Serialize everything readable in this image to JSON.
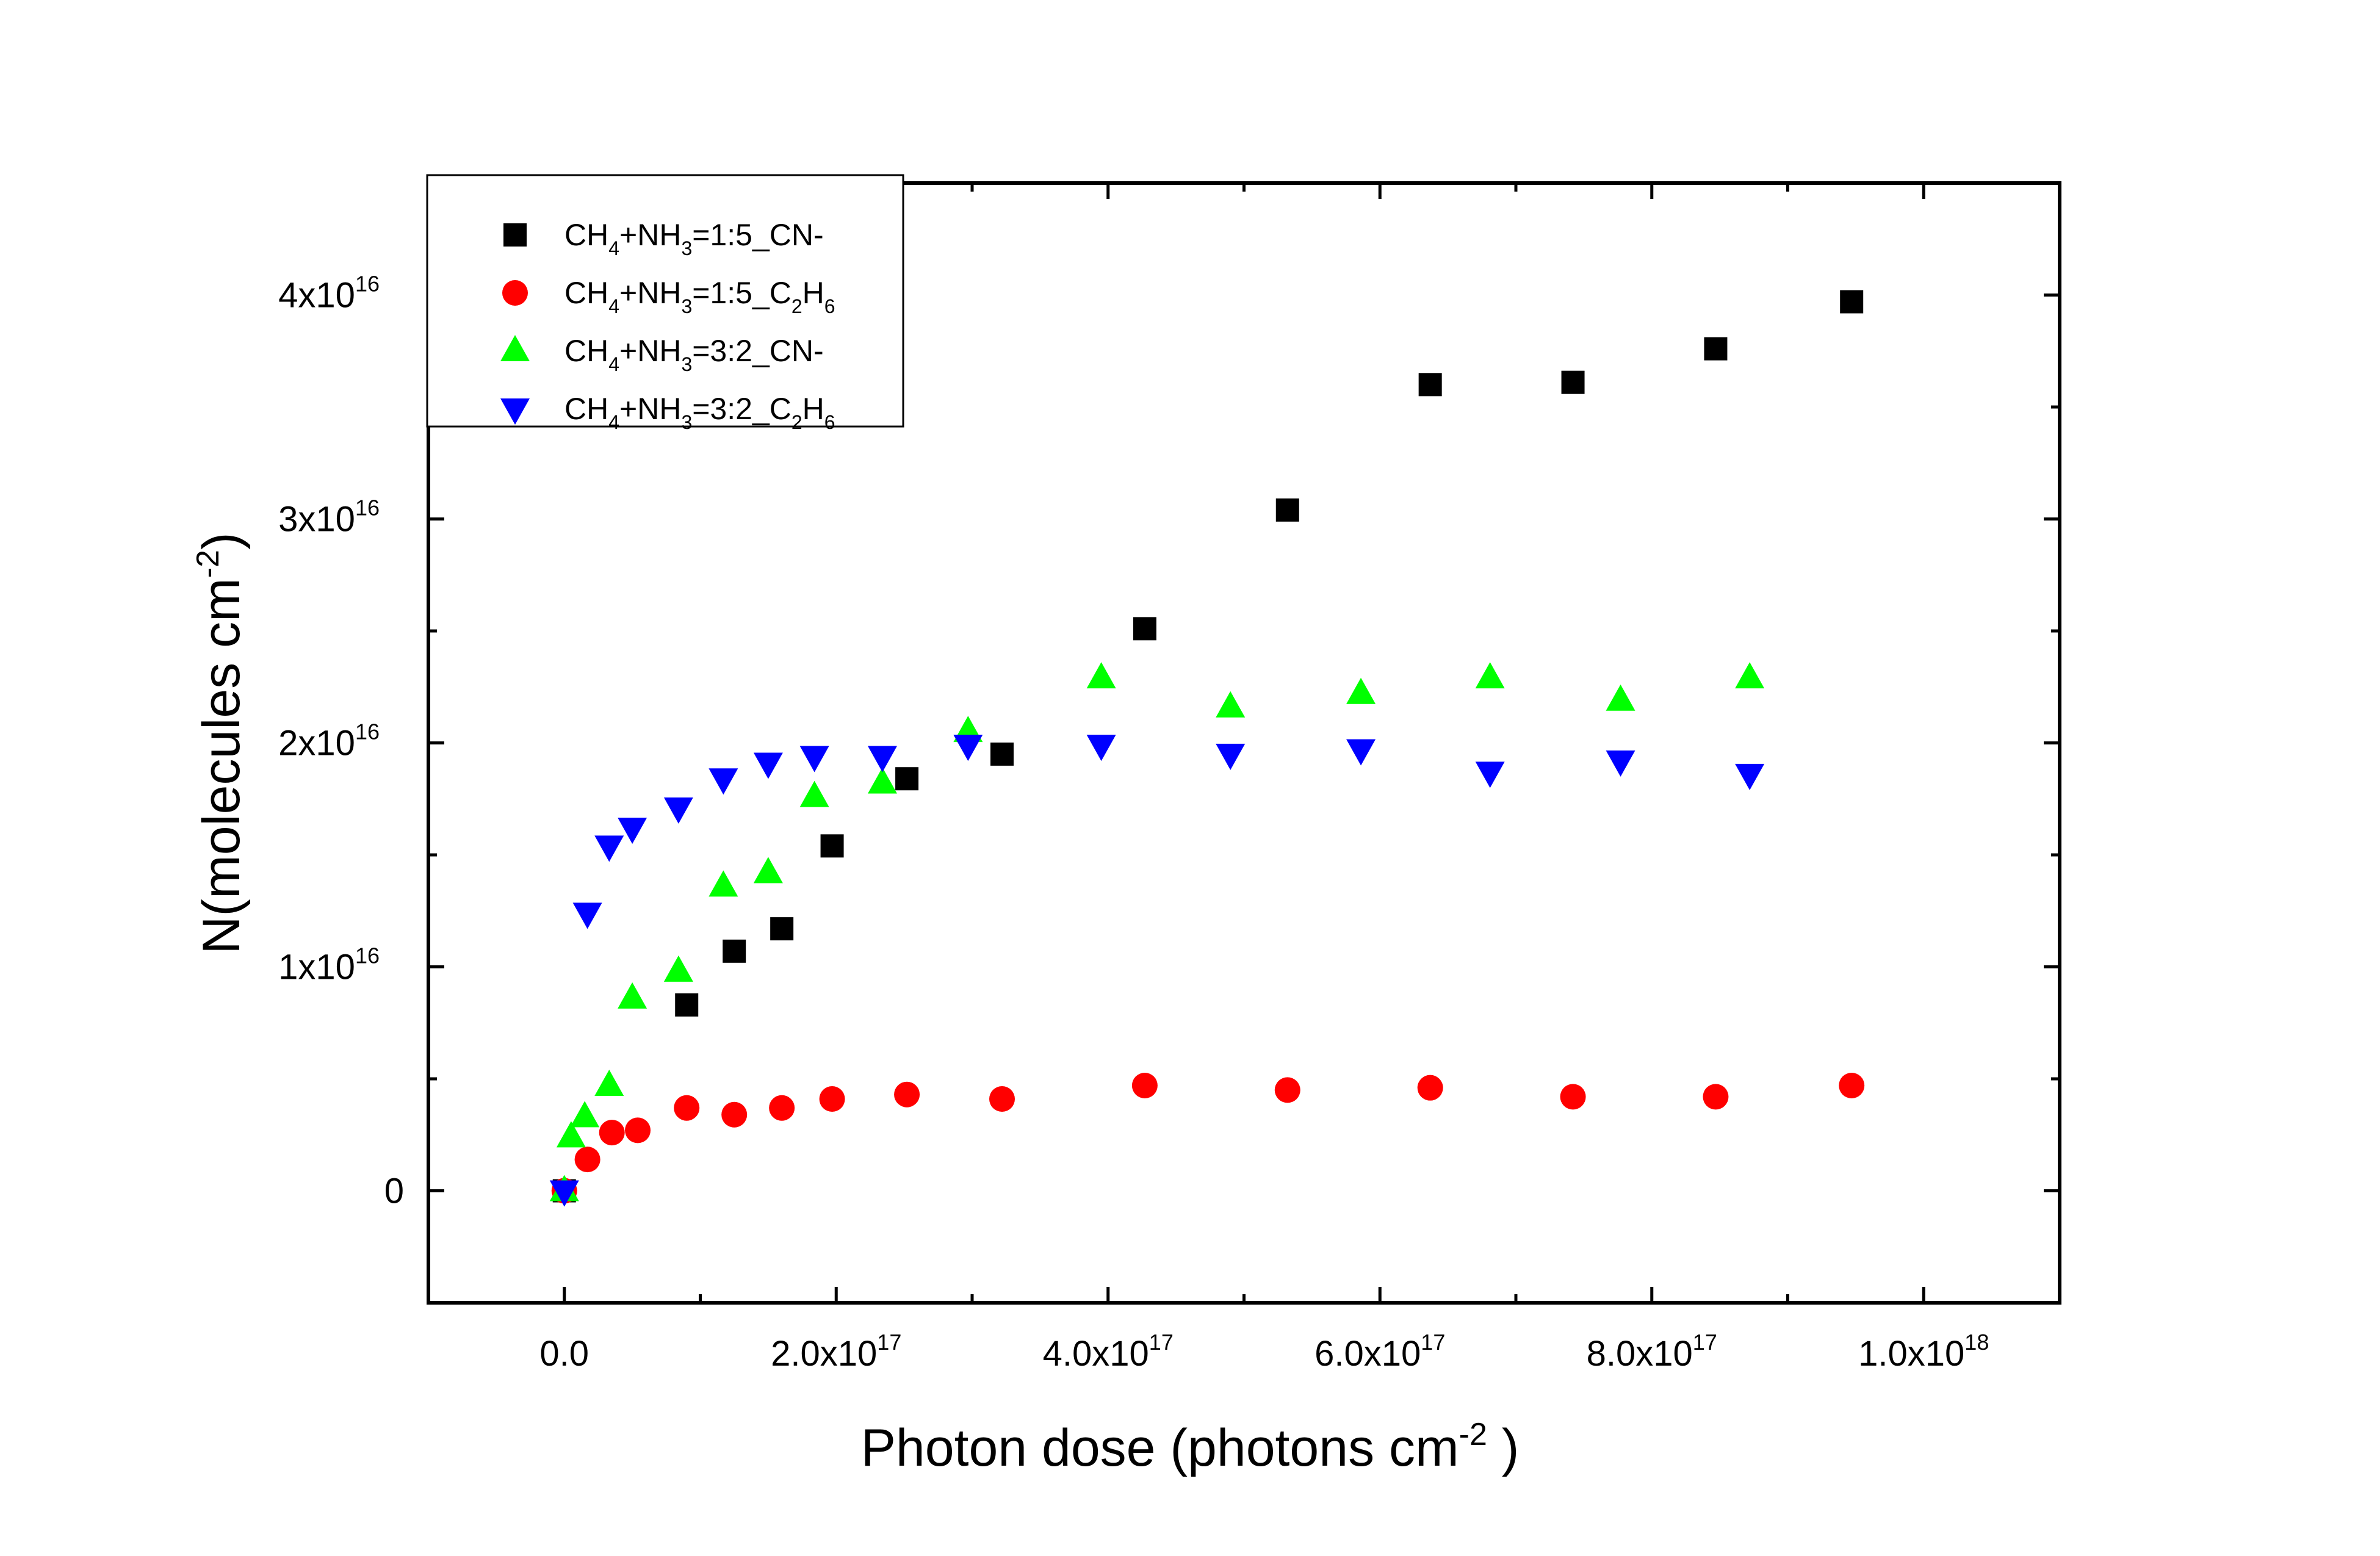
{
  "chart_data": {
    "type": "scatter",
    "xaxis": {
      "label_main": "Photon dose (photons cm",
      "label_sup": "-2",
      "label_end": " )",
      "range": [
        -1e+17,
        1.1e+18
      ],
      "ticks": [
        {
          "value": 0,
          "mantissa": "0.0",
          "exp": ""
        },
        {
          "value": 2e+17,
          "mantissa": "2.0x10",
          "exp": "17"
        },
        {
          "value": 4e+17,
          "mantissa": "4.0x10",
          "exp": "17"
        },
        {
          "value": 6e+17,
          "mantissa": "6.0x10",
          "exp": "17"
        },
        {
          "value": 8e+17,
          "mantissa": "8.0x10",
          "exp": "17"
        },
        {
          "value": 1e+18,
          "mantissa": "1.0x10",
          "exp": "18"
        }
      ],
      "minor_ticks": [
        1e+17,
        3e+17,
        5e+17,
        7e+17,
        9e+17
      ]
    },
    "yaxis": {
      "label_main": "N(molecules cm",
      "label_sup": "-2",
      "label_end": ")",
      "range": [
        -5000000000000000.0,
        4.5e+16
      ],
      "ticks": [
        {
          "value": 0,
          "mantissa": "0",
          "exp": ""
        },
        {
          "value": 1e+16,
          "mantissa": "1x10",
          "exp": "16"
        },
        {
          "value": 2e+16,
          "mantissa": "2x10",
          "exp": "16"
        },
        {
          "value": 3e+16,
          "mantissa": "3x10",
          "exp": "16"
        },
        {
          "value": 4e+16,
          "mantissa": "4x10",
          "exp": "16"
        }
      ],
      "minor_ticks": [
        5000000000000000.0,
        1.5e+16,
        2.5e+16,
        3.5e+16
      ]
    },
    "grid": false,
    "legend_position": "top-left",
    "series": [
      {
        "name": "CH4+NH3=1:5_CN-",
        "legend_parts": [
          [
            "CH",
            ""
          ],
          [
            "4",
            "sub"
          ],
          [
            "+NH",
            ""
          ],
          [
            "3",
            "sub"
          ],
          [
            "=1:5_CN-",
            ""
          ]
        ],
        "marker": "square",
        "color": "#000000",
        "points": [
          [
            0,
            0
          ],
          [
            9e+16,
            8300000000000000.0
          ],
          [
            1.25e+17,
            1.07e+16
          ],
          [
            1.6e+17,
            1.17e+16
          ],
          [
            1.97e+17,
            1.54e+16
          ],
          [
            2.52e+17,
            1.84e+16
          ],
          [
            3.22e+17,
            1.95e+16
          ],
          [
            4.27e+17,
            2.51e+16
          ],
          [
            5.32e+17,
            3.04e+16
          ],
          [
            6.37e+17,
            3.6e+16
          ],
          [
            7.42e+17,
            3.61e+16
          ],
          [
            8.47e+17,
            3.76e+16
          ],
          [
            9.47e+17,
            3.97e+16
          ]
        ]
      },
      {
        "name": "CH4+NH3=1:5_C2H6",
        "legend_parts": [
          [
            "CH",
            ""
          ],
          [
            "4",
            "sub"
          ],
          [
            "+NH",
            ""
          ],
          [
            "3",
            "sub"
          ],
          [
            "=1:5_C",
            ""
          ],
          [
            "2",
            "sub"
          ],
          [
            "H",
            ""
          ],
          [
            "6",
            "sub"
          ]
        ],
        "marker": "circle",
        "color": "#ff0000",
        "points": [
          [
            0,
            0
          ],
          [
            1.7e+16,
            1400000000000000.0
          ],
          [
            3.5e+16,
            2600000000000000.0
          ],
          [
            5.4e+16,
            2700000000000000.0
          ],
          [
            9e+16,
            3700000000000000.0
          ],
          [
            1.25e+17,
            3400000000000000.0
          ],
          [
            1.6e+17,
            3700000000000000.0
          ],
          [
            1.97e+17,
            4100000000000000.0
          ],
          [
            2.52e+17,
            4300000000000000.0
          ],
          [
            3.22e+17,
            4100000000000000.0
          ],
          [
            4.27e+17,
            4700000000000000.0
          ],
          [
            5.32e+17,
            4500000000000000.0
          ],
          [
            6.37e+17,
            4600000000000000.0
          ],
          [
            7.42e+17,
            4200000000000000.0
          ],
          [
            8.47e+17,
            4200000000000000.0
          ],
          [
            9.47e+17,
            4700000000000000.0
          ]
        ]
      },
      {
        "name": "CH4+NH3=3:2_CN-",
        "legend_parts": [
          [
            "CH",
            ""
          ],
          [
            "4",
            "sub"
          ],
          [
            "+NH",
            ""
          ],
          [
            "3",
            "sub"
          ],
          [
            "=3:2_CN-",
            ""
          ]
        ],
        "marker": "triangle-up",
        "color": "#00ff00",
        "points": [
          [
            0,
            0
          ],
          [
            5000000000000000.0,
            2400000000000000.0
          ],
          [
            1.5e+16,
            3300000000000000.0
          ],
          [
            3.3e+16,
            4700000000000000.0
          ],
          [
            5e+16,
            8600000000000000.0
          ],
          [
            8.4e+16,
            9800000000000000.0
          ],
          [
            1.17e+17,
            1.36e+16
          ],
          [
            1.5e+17,
            1.42e+16
          ],
          [
            1.84e+17,
            1.76e+16
          ],
          [
            2.34e+17,
            1.82e+16
          ],
          [
            2.97e+17,
            2.05e+16
          ],
          [
            3.95e+17,
            2.29e+16
          ],
          [
            4.9e+17,
            2.16e+16
          ],
          [
            5.86e+17,
            2.22e+16
          ],
          [
            6.81e+17,
            2.29e+16
          ],
          [
            7.77e+17,
            2.19e+16
          ],
          [
            8.72e+17,
            2.29e+16
          ]
        ]
      },
      {
        "name": "CH4+NH3=3:2_C2H6",
        "legend_parts": [
          [
            "CH",
            ""
          ],
          [
            "4",
            "sub"
          ],
          [
            "+NH",
            ""
          ],
          [
            "3",
            "sub"
          ],
          [
            "=3:2_C",
            ""
          ],
          [
            "2",
            "sub"
          ],
          [
            "H",
            ""
          ],
          [
            "6",
            "sub"
          ]
        ],
        "marker": "triangle-down",
        "color": "#0000ff",
        "points": [
          [
            0,
            0
          ],
          [
            1.7e+16,
            1.24e+16
          ],
          [
            3.3e+16,
            1.54e+16
          ],
          [
            5e+16,
            1.62e+16
          ],
          [
            8.4e+16,
            1.71e+16
          ],
          [
            1.17e+17,
            1.84e+16
          ],
          [
            1.5e+17,
            1.91e+16
          ],
          [
            1.84e+17,
            1.94e+16
          ],
          [
            2.34e+17,
            1.94e+16
          ],
          [
            2.97e+17,
            1.99e+16
          ],
          [
            3.95e+17,
            1.99e+16
          ],
          [
            4.9e+17,
            1.95e+16
          ],
          [
            5.86e+17,
            1.97e+16
          ],
          [
            6.81e+17,
            1.87e+16
          ],
          [
            7.77e+17,
            1.92e+16
          ],
          [
            8.72e+17,
            1.86e+16
          ]
        ]
      }
    ]
  }
}
